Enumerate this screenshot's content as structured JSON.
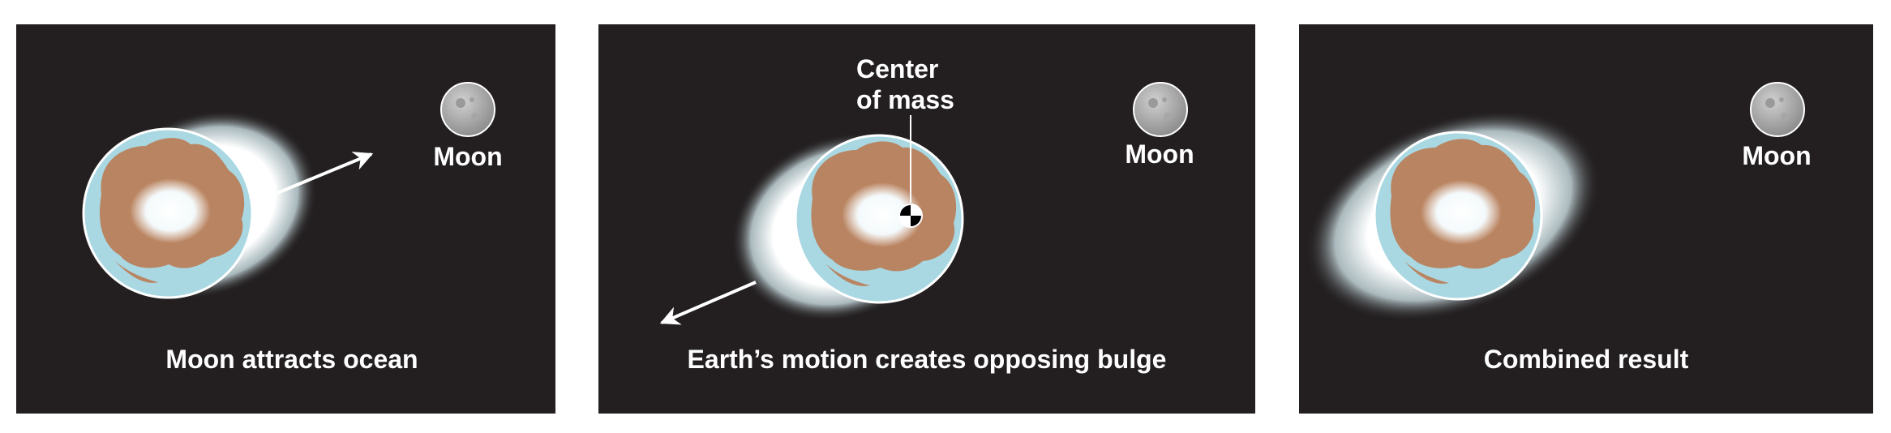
{
  "panels": [
    {
      "id": "moon-attracts",
      "moon_label": "Moon",
      "caption": "Moon attracts ocean",
      "bulge": "toward-moon",
      "arrow_direction": "toward-moon"
    },
    {
      "id": "earth-motion",
      "moon_label": "Moon",
      "caption": "Earth’s motion creates opposing bulge",
      "bulge": "away-from-moon",
      "arrow_direction": "away-from-moon",
      "center_of_mass_label_line1": "Center",
      "center_of_mass_label_line2": "of mass"
    },
    {
      "id": "combined",
      "moon_label": "Moon",
      "caption": "Combined result",
      "bulge": "both"
    }
  ],
  "colors": {
    "background": "#231f20",
    "ocean": "#a9d8e3",
    "land": "#b98461",
    "ice": "#ffffff",
    "moon": "#b8b8b8",
    "text": "#ffffff"
  }
}
